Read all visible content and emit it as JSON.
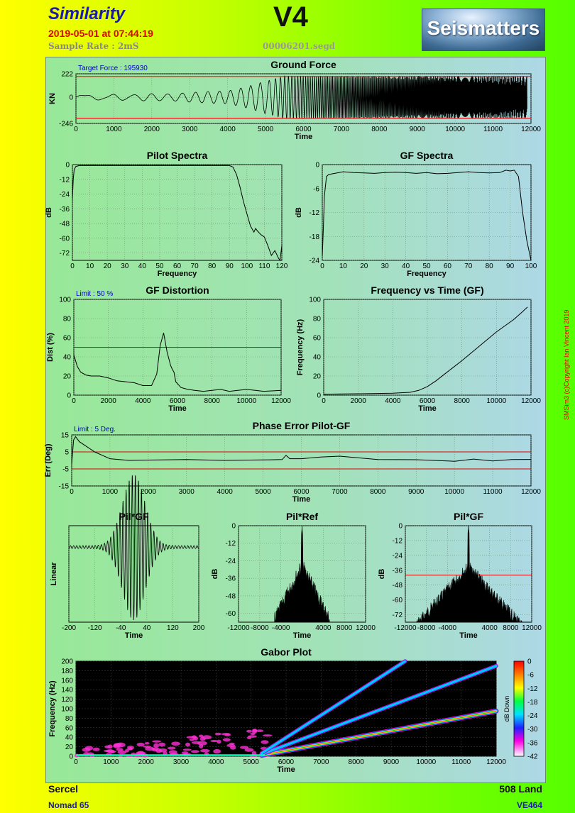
{
  "header": {
    "title": "Similarity",
    "date": "2019-05-01 at 07:44:19",
    "sample_rate": "Sample Rate : 2mS",
    "vibrator": "V4",
    "file": "00006201.segd",
    "logo": "Seismatters"
  },
  "footer": {
    "left1": "Sercel",
    "left2": "Nomad 65",
    "right1": "508 Land",
    "right2": "VE464"
  },
  "side_text": "SMSim3 (c)Copyright Ian Vincent 2019",
  "colors": {
    "trace": "#000000",
    "limit": "#dd0000",
    "note": "#0000cc",
    "grid": "#6f8f6f"
  },
  "chart_data": [
    {
      "id": "ground_force",
      "type": "line",
      "title": "Ground Force",
      "xlabel": "Time",
      "ylabel": "KN",
      "xlim": [
        0,
        12000
      ],
      "ylim": [
        -246,
        222
      ],
      "xticks": [
        0,
        1000,
        2000,
        3000,
        4000,
        5000,
        6000,
        7000,
        8000,
        9000,
        10000,
        11000,
        12000
      ],
      "yticks": [
        -246,
        0,
        222
      ],
      "annotation": "Target Force : 195930",
      "limit_lines": [
        195930,
        -195930
      ],
      "series": [
        {
          "x": [
            0,
            2000,
            4000,
            5000,
            5500,
            6000,
            9000,
            12000
          ],
          "y": [
            20,
            30,
            60,
            150,
            200,
            200,
            200,
            200
          ]
        }
      ]
    },
    {
      "id": "pilot_spectra",
      "type": "line",
      "title": "Pilot Spectra",
      "xlabel": "Frequency",
      "ylabel": "dB",
      "xlim": [
        0,
        120
      ],
      "ylim": [
        -78,
        0
      ],
      "xticks": [
        0,
        10,
        20,
        30,
        40,
        50,
        60,
        70,
        80,
        90,
        100,
        110,
        120
      ],
      "yticks": [
        0,
        -12,
        -24,
        -36,
        -48,
        -60,
        -72
      ],
      "series": [
        {
          "x": [
            0,
            0.5,
            1,
            2,
            4,
            6,
            90,
            92,
            94,
            96,
            98,
            100,
            102,
            104,
            105,
            106,
            108,
            110,
            112,
            114,
            116,
            118,
            119,
            120
          ],
          "y": [
            -28,
            -12,
            -4,
            -1.5,
            -0.8,
            -0.8,
            -0.8,
            -2,
            -8,
            -18,
            -30,
            -40,
            -50,
            -55,
            -52,
            -54,
            -57,
            -59,
            -66,
            -74,
            -70,
            -76,
            -78,
            -66
          ]
        }
      ]
    },
    {
      "id": "gf_spectra",
      "type": "line",
      "title": "GF Spectra",
      "xlabel": "Frequency",
      "ylabel": "dB",
      "xlim": [
        0,
        100
      ],
      "ylim": [
        -24,
        0
      ],
      "xticks": [
        0,
        10,
        20,
        30,
        40,
        50,
        60,
        70,
        80,
        90,
        100
      ],
      "yticks": [
        0,
        -6,
        -12,
        -18,
        -24
      ],
      "series": [
        {
          "x": [
            0,
            0.5,
            1,
            2,
            3,
            5,
            8,
            10,
            15,
            20,
            25,
            30,
            35,
            40,
            45,
            50,
            55,
            60,
            65,
            70,
            75,
            80,
            85,
            88,
            90,
            92,
            94,
            96,
            98,
            100
          ],
          "y": [
            -23,
            -16,
            -8,
            -3,
            -2.5,
            -2.3,
            -2,
            -1.8,
            -2,
            -2.1,
            -2.2,
            -2,
            -1.9,
            -2,
            -2.2,
            -2,
            -2.3,
            -2.2,
            -2,
            -1.8,
            -2,
            -2.1,
            -2,
            -1.4,
            -1.6,
            -1.4,
            -3,
            -12,
            -19,
            -24
          ]
        }
      ]
    },
    {
      "id": "gf_distortion",
      "type": "line",
      "title": "GF Distortion",
      "xlabel": "Time",
      "ylabel": "Dist (%)",
      "xlim": [
        0,
        12000
      ],
      "ylim": [
        0,
        100
      ],
      "xticks": [
        0,
        2000,
        4000,
        6000,
        8000,
        10000,
        12000
      ],
      "yticks": [
        0,
        20,
        40,
        60,
        80,
        100
      ],
      "annotation": "Limit : 50 %",
      "limit_lines": [
        50
      ],
      "series": [
        {
          "x": [
            0,
            200,
            400,
            700,
            1000,
            1500,
            2000,
            2500,
            3000,
            3500,
            4000,
            4500,
            4800,
            5000,
            5200,
            5400,
            5600,
            5700,
            5800,
            5900,
            6200,
            6600,
            7000,
            7500,
            8000,
            8500,
            9000,
            10000,
            10500,
            11000,
            12000
          ],
          "y": [
            42,
            30,
            24,
            21,
            20,
            20,
            18,
            15,
            14,
            13,
            10,
            10,
            22,
            52,
            65,
            45,
            31,
            27,
            24,
            14,
            8,
            6,
            5,
            4,
            5,
            6,
            4,
            6,
            5,
            4,
            5
          ]
        }
      ]
    },
    {
      "id": "freq_vs_time",
      "type": "line",
      "title": "Frequency vs Time (GF)",
      "xlabel": "Time",
      "ylabel": "Frequency (Hz)",
      "xlim": [
        0,
        12000
      ],
      "ylim": [
        0,
        100
      ],
      "xticks": [
        0,
        2000,
        4000,
        6000,
        8000,
        10000,
        12000
      ],
      "yticks": [
        0,
        20,
        40,
        60,
        80,
        100
      ],
      "series": [
        {
          "x": [
            0,
            2000,
            4000,
            5000,
            5500,
            6000,
            6500,
            7000,
            8000,
            9000,
            10000,
            11000,
            11500,
            11800
          ],
          "y": [
            1,
            1.5,
            2,
            3,
            5,
            9,
            15,
            22,
            36,
            51,
            66,
            79,
            87,
            92
          ]
        }
      ]
    },
    {
      "id": "phase_error",
      "type": "line",
      "title": "Phase Error Pilot-GF",
      "xlabel": "Time",
      "ylabel": "Err (Deg)",
      "xlim": [
        0,
        12000
      ],
      "ylim": [
        -15,
        15
      ],
      "xticks": [
        0,
        1000,
        2000,
        3000,
        4000,
        5000,
        6000,
        7000,
        8000,
        9000,
        10000,
        11000,
        12000
      ],
      "yticks": [
        -15,
        -5,
        5,
        15
      ],
      "annotation": "Limit : 5 Deg.",
      "limit_lines": [
        5,
        -5
      ],
      "series": [
        {
          "x": [
            0,
            50,
            100,
            200,
            400,
            600,
            800,
            1000,
            1500,
            2000,
            3000,
            4000,
            5000,
            5500,
            5600,
            5700,
            6000,
            6500,
            7000,
            7500,
            8000,
            9000,
            10000,
            10500,
            11000,
            11500,
            12000
          ],
          "y": [
            -2,
            12,
            14,
            11,
            8,
            5,
            3,
            1,
            0,
            0.2,
            0.5,
            0,
            0.3,
            0.5,
            3,
            1,
            1,
            2,
            2.5,
            1.5,
            0.5,
            0.4,
            -0.5,
            0.8,
            -0.3,
            0.5,
            0.6
          ]
        }
      ]
    },
    {
      "id": "pil_gf_linear",
      "type": "line",
      "title": "Pil*GF",
      "xlabel": "Time",
      "ylabel": "Linear",
      "xlim": [
        -200,
        200
      ],
      "ylim": [
        -1.05,
        0.3
      ],
      "xticks": [
        -200,
        -120,
        -40,
        40,
        120,
        200
      ],
      "yticks": []
    },
    {
      "id": "pil_ref",
      "type": "area",
      "title": "Pil*Ref",
      "xlabel": "Time",
      "ylabel": "dB",
      "xlim": [
        -12000,
        12000
      ],
      "ylim": [
        -66,
        0
      ],
      "xticks": [
        -12000,
        -8000,
        -4000,
        4000,
        8000,
        12000
      ],
      "yticks": [
        0,
        -12,
        -24,
        -36,
        -48,
        -60
      ]
    },
    {
      "id": "pil_gf_db",
      "type": "area",
      "title": "Pil*GF",
      "xlabel": "Time",
      "ylabel": "dB",
      "xlim": [
        -12000,
        12000
      ],
      "ylim": [
        -78,
        0
      ],
      "xticks": [
        -12000,
        -8000,
        -4000,
        4000,
        8000,
        12000
      ],
      "yticks": [
        0,
        -12,
        -24,
        -36,
        -48,
        -60,
        -72
      ],
      "limit_lines": [
        -40
      ]
    },
    {
      "id": "gabor",
      "type": "heatmap",
      "title": "Gabor Plot",
      "xlabel": "Time",
      "ylabel": "Frequency (Hz)",
      "xlim": [
        0,
        12000
      ],
      "ylim": [
        0,
        200
      ],
      "xticks": [
        0,
        1000,
        2000,
        3000,
        4000,
        5000,
        6000,
        7000,
        8000,
        9000,
        10000,
        11000,
        12000
      ],
      "yticks": [
        0,
        20,
        40,
        60,
        80,
        100,
        120,
        140,
        160,
        180,
        200
      ],
      "colorbar_label": "dB Down",
      "colorbar_ticks": [
        0,
        -6,
        -12,
        -18,
        -24,
        -30,
        -36,
        -42
      ],
      "harmonics": [
        {
          "name": "fundamental",
          "points": [
            [
              5300,
              2
            ],
            [
              12000,
              95
            ]
          ]
        },
        {
          "name": "2nd",
          "points": [
            [
              5300,
              4
            ],
            [
              12000,
              190
            ]
          ]
        },
        {
          "name": "3rd",
          "points": [
            [
              5300,
              6
            ],
            [
              9400,
              200
            ]
          ]
        }
      ]
    }
  ]
}
